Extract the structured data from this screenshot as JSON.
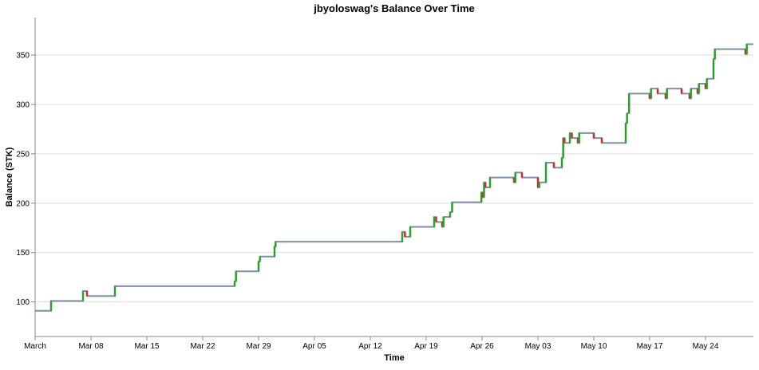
{
  "chart_data": {
    "type": "line",
    "title": "jbyoloswag's Balance Over Time",
    "xlabel": "Time",
    "ylabel": "Balance (STK)",
    "x_start": "2024-03-01",
    "x_end": "2024-05-30",
    "ylim": [
      65,
      388
    ],
    "yticks": [
      100,
      150,
      200,
      250,
      300,
      350
    ],
    "xticks": [
      {
        "date": "2024-03-01",
        "label": "March"
      },
      {
        "date": "2024-03-08",
        "label": "Mar 08"
      },
      {
        "date": "2024-03-15",
        "label": "Mar 15"
      },
      {
        "date": "2024-03-22",
        "label": "Mar 22"
      },
      {
        "date": "2024-03-29",
        "label": "Mar 29"
      },
      {
        "date": "2024-04-05",
        "label": "Apr 05"
      },
      {
        "date": "2024-04-12",
        "label": "Apr 12"
      },
      {
        "date": "2024-04-19",
        "label": "Apr 19"
      },
      {
        "date": "2024-04-26",
        "label": "Apr 26"
      },
      {
        "date": "2024-05-03",
        "label": "May 03"
      },
      {
        "date": "2024-05-10",
        "label": "May 10"
      },
      {
        "date": "2024-05-17",
        "label": "May 17"
      },
      {
        "date": "2024-05-24",
        "label": "May 24"
      }
    ],
    "grid": true,
    "colors": {
      "balance_line": "#7f8fa6",
      "increase": "#2ca02c",
      "decrease": "#d62728",
      "grid": "#dddddd"
    },
    "series": [
      {
        "name": "",
        "points": [
          {
            "x": "2024-03-01",
            "y": 91
          },
          {
            "x": "2024-03-03",
            "y": 101
          },
          {
            "x": "2024-03-07",
            "y": 111
          },
          {
            "x": "2024-03-07 12:00",
            "y": 106
          },
          {
            "x": "2024-03-11",
            "y": 116
          },
          {
            "x": "2024-03-26",
            "y": 121
          },
          {
            "x": "2024-03-26 04:00",
            "y": 131
          },
          {
            "x": "2024-03-29",
            "y": 141
          },
          {
            "x": "2024-03-29 04:00",
            "y": 146
          },
          {
            "x": "2024-03-31",
            "y": 156
          },
          {
            "x": "2024-03-31 03:00",
            "y": 161
          },
          {
            "x": "2024-04-16",
            "y": 171
          },
          {
            "x": "2024-04-16 08:00",
            "y": 166
          },
          {
            "x": "2024-04-17",
            "y": 176
          },
          {
            "x": "2024-04-20",
            "y": 186
          },
          {
            "x": "2024-04-20 06:00",
            "y": 181
          },
          {
            "x": "2024-04-21",
            "y": 176
          },
          {
            "x": "2024-04-21 04:00",
            "y": 186
          },
          {
            "x": "2024-04-22",
            "y": 191
          },
          {
            "x": "2024-04-22 06:00",
            "y": 201
          },
          {
            "x": "2024-04-25 22:00",
            "y": 211
          },
          {
            "x": "2024-04-26 02:00",
            "y": 206
          },
          {
            "x": "2024-04-26 06:00",
            "y": 221
          },
          {
            "x": "2024-04-26 10:00",
            "y": 216
          },
          {
            "x": "2024-04-27",
            "y": 226
          },
          {
            "x": "2024-04-30",
            "y": 221
          },
          {
            "x": "2024-04-30 04:00",
            "y": 231
          },
          {
            "x": "2024-05-01",
            "y": 226
          },
          {
            "x": "2024-05-03",
            "y": 216
          },
          {
            "x": "2024-05-03 04:00",
            "y": 221
          },
          {
            "x": "2024-05-04",
            "y": 241
          },
          {
            "x": "2024-05-05",
            "y": 236
          },
          {
            "x": "2024-05-06",
            "y": 246
          },
          {
            "x": "2024-05-06 04:00",
            "y": 266
          },
          {
            "x": "2024-05-06 08:00",
            "y": 261
          },
          {
            "x": "2024-05-07",
            "y": 271
          },
          {
            "x": "2024-05-07 06:00",
            "y": 266
          },
          {
            "x": "2024-05-08",
            "y": 261
          },
          {
            "x": "2024-05-08 04:00",
            "y": 271
          },
          {
            "x": "2024-05-10",
            "y": 266
          },
          {
            "x": "2024-05-11",
            "y": 261
          },
          {
            "x": "2024-05-14",
            "y": 281
          },
          {
            "x": "2024-05-14 04:00",
            "y": 291
          },
          {
            "x": "2024-05-14 10:00",
            "y": 311
          },
          {
            "x": "2024-05-17",
            "y": 306
          },
          {
            "x": "2024-05-17 04:00",
            "y": 316
          },
          {
            "x": "2024-05-18",
            "y": 311
          },
          {
            "x": "2024-05-19",
            "y": 306
          },
          {
            "x": "2024-05-19 04:00",
            "y": 316
          },
          {
            "x": "2024-05-21",
            "y": 311
          },
          {
            "x": "2024-05-22",
            "y": 306
          },
          {
            "x": "2024-05-22 04:00",
            "y": 316
          },
          {
            "x": "2024-05-23",
            "y": 311
          },
          {
            "x": "2024-05-23 04:00",
            "y": 321
          },
          {
            "x": "2024-05-24",
            "y": 316
          },
          {
            "x": "2024-05-24 04:00",
            "y": 326
          },
          {
            "x": "2024-05-25",
            "y": 346
          },
          {
            "x": "2024-05-25 04:00",
            "y": 356
          },
          {
            "x": "2024-05-29",
            "y": 351
          },
          {
            "x": "2024-05-29 04:00",
            "y": 361
          },
          {
            "x": "2024-05-30",
            "y": 361
          }
        ]
      }
    ]
  }
}
